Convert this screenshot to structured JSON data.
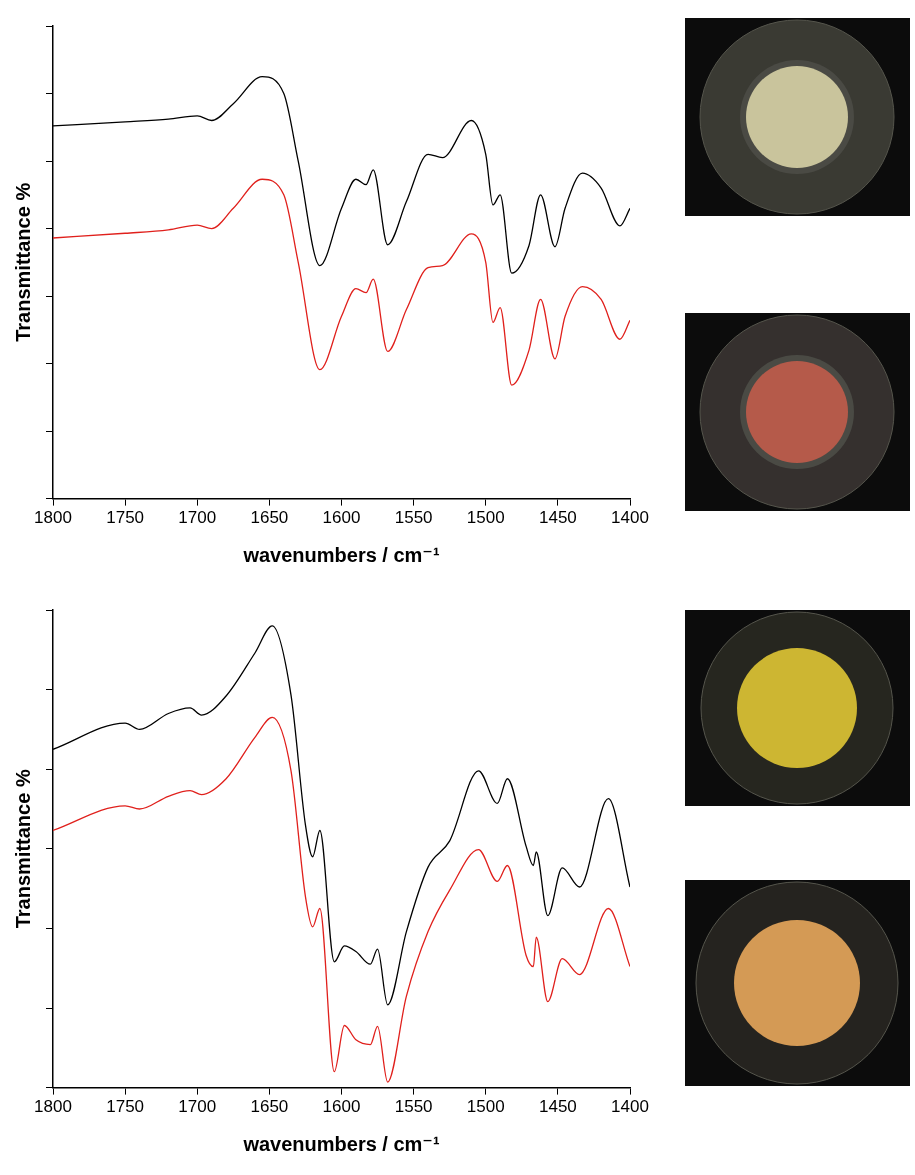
{
  "chart_data": [
    {
      "type": "line",
      "x_label": "wavenumbers / cm⁻¹",
      "y_label": "Transmittance %",
      "x": [
        1800,
        1750,
        1720,
        1700,
        1690,
        1675,
        1655,
        1640,
        1630,
        1615,
        1600,
        1590,
        1583,
        1578,
        1568,
        1555,
        1540,
        1530,
        1510,
        1500,
        1495,
        1490,
        1482,
        1470,
        1462,
        1452,
        1445,
        1433,
        1420,
        1407,
        1400
      ],
      "series": [
        {
          "color": "#000000",
          "values": [
            5.52,
            5.58,
            5.62,
            5.67,
            5.6,
            5.85,
            6.25,
            6.0,
            5.0,
            3.45,
            4.3,
            4.73,
            4.65,
            4.87,
            3.76,
            4.4,
            5.1,
            5.05,
            5.6,
            5.1,
            4.35,
            4.5,
            3.34,
            3.75,
            4.5,
            3.73,
            4.3,
            4.82,
            4.6,
            4.04,
            4.3
          ]
        },
        {
          "color": "#e0201c",
          "values": [
            3.86,
            3.93,
            3.98,
            4.05,
            4.0,
            4.3,
            4.73,
            4.5,
            3.5,
            1.91,
            2.7,
            3.11,
            3.05,
            3.25,
            2.18,
            2.8,
            3.42,
            3.45,
            3.92,
            3.5,
            2.61,
            2.83,
            1.68,
            2.2,
            2.95,
            2.07,
            2.7,
            3.14,
            2.95,
            2.36,
            2.64
          ]
        }
      ],
      "xlim": [
        1800,
        1400
      ],
      "xticks": [
        1800,
        1750,
        1700,
        1650,
        1600,
        1550,
        1500,
        1450,
        1400
      ],
      "ylim": [
        0,
        7
      ],
      "yticks": [
        0,
        1,
        2,
        3,
        4,
        5,
        6,
        7
      ],
      "grid": false,
      "tick_labels": "x"
    },
    {
      "type": "line",
      "x_label": "wavenumbers / cm⁻¹",
      "y_label": "Transmittance %",
      "x": [
        1800,
        1750,
        1740,
        1720,
        1705,
        1697,
        1680,
        1660,
        1648,
        1635,
        1625,
        1620,
        1615,
        1605,
        1598,
        1590,
        1580,
        1575,
        1568,
        1555,
        1540,
        1525,
        1505,
        1492,
        1485,
        1472,
        1467,
        1465,
        1457,
        1447,
        1435,
        1415,
        1400
      ],
      "series": [
        {
          "color": "#000000",
          "values": [
            4.25,
            4.58,
            4.5,
            4.7,
            4.77,
            4.68,
            4.92,
            5.46,
            5.8,
            4.93,
            3.3,
            2.9,
            3.23,
            1.58,
            1.78,
            1.71,
            1.55,
            1.74,
            1.04,
            1.96,
            2.77,
            3.1,
            3.98,
            3.57,
            3.88,
            3.03,
            2.79,
            2.96,
            2.16,
            2.76,
            2.52,
            3.63,
            2.52
          ]
        },
        {
          "color": "#e0201c",
          "values": [
            3.23,
            3.54,
            3.5,
            3.66,
            3.73,
            3.68,
            3.88,
            4.4,
            4.65,
            3.98,
            2.4,
            2.02,
            2.25,
            0.2,
            0.78,
            0.6,
            0.54,
            0.77,
            0.07,
            1.15,
            1.96,
            2.48,
            2.99,
            2.59,
            2.79,
            1.66,
            1.52,
            1.89,
            1.08,
            1.62,
            1.42,
            2.25,
            1.52
          ]
        }
      ],
      "xlim": [
        1800,
        1400
      ],
      "xticks": [
        1800,
        1750,
        1700,
        1650,
        1600,
        1550,
        1500,
        1450,
        1400
      ],
      "ylim": [
        0,
        6
      ],
      "yticks": [
        0,
        1,
        2,
        3,
        4,
        5,
        6
      ],
      "grid": false,
      "tick_labels": "x"
    }
  ]
}
